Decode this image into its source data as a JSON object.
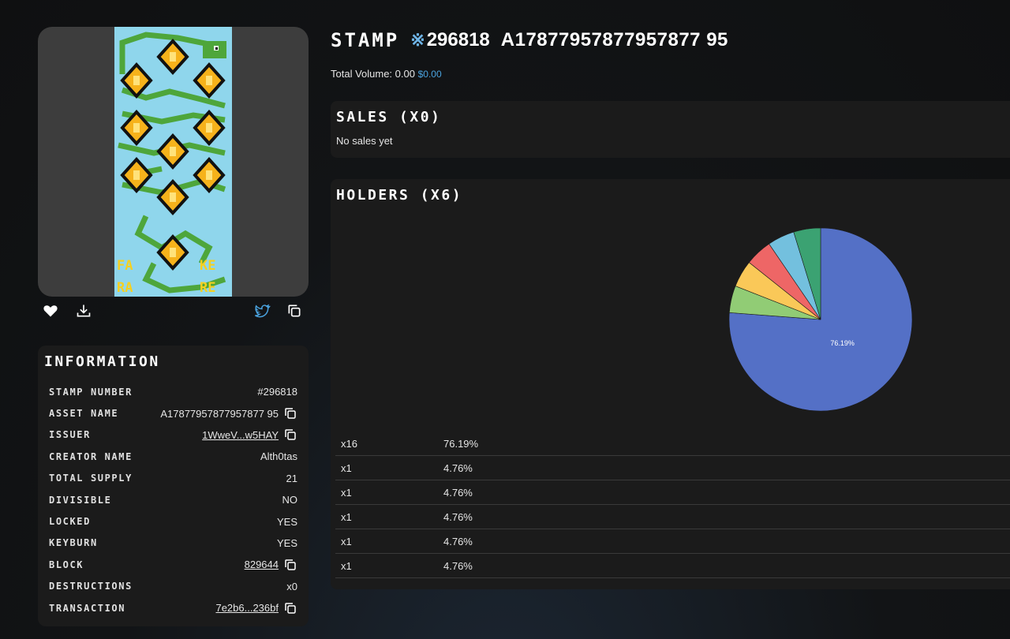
{
  "title": {
    "prefix": "STAMP",
    "symbol": "※",
    "number": "296818",
    "asset": "A17877957877957877 95"
  },
  "volume": {
    "label": "Total Volume: 0.00",
    "usd": "$0.00"
  },
  "sales": {
    "title": "SALES (X0)",
    "empty": "No sales yet"
  },
  "holders": {
    "title": "HOLDERS (X6)",
    "rows": [
      {
        "qty": "x16",
        "pct": "76.19%"
      },
      {
        "qty": "x1",
        "pct": "4.76%"
      },
      {
        "qty": "x1",
        "pct": "4.76%"
      },
      {
        "qty": "x1",
        "pct": "4.76%"
      },
      {
        "qty": "x1",
        "pct": "4.76%"
      },
      {
        "qty": "x1",
        "pct": "4.76%"
      }
    ]
  },
  "chart_data": {
    "type": "pie",
    "values": [
      76.19,
      4.76,
      4.76,
      4.76,
      4.76,
      4.76
    ],
    "labels": [
      "76.19%",
      "",
      "",
      "",
      "",
      ""
    ],
    "colors": [
      "#5470c6",
      "#91cc75",
      "#fac858",
      "#ee6666",
      "#73c0de",
      "#3ba272"
    ]
  },
  "information": {
    "title": "INFORMATION",
    "rows": [
      {
        "label": "STAMP NUMBER",
        "value": "#296818"
      },
      {
        "label": "ASSET NAME",
        "value": "A17877957877957877 95"
      },
      {
        "label": "ISSUER",
        "value": "1WweV...w5HAY"
      },
      {
        "label": "CREATOR NAME",
        "value": "Alth0tas"
      },
      {
        "label": "TOTAL SUPPLY",
        "value": "21"
      },
      {
        "label": "DIVISIBLE",
        "value": "NO"
      },
      {
        "label": "LOCKED",
        "value": "YES"
      },
      {
        "label": "KEYBURN",
        "value": "YES"
      },
      {
        "label": "BLOCK",
        "value": "829644"
      },
      {
        "label": "DESTRUCTIONS",
        "value": "x0"
      },
      {
        "label": "TRANSACTION",
        "value": "7e2b6...236bf"
      }
    ]
  },
  "art_text": {
    "left_top": "FA",
    "left_bottom": "RA",
    "right_top": "KE",
    "right_bottom": "RE"
  },
  "icons": {
    "like": "heart-icon",
    "download": "download-icon",
    "share": "twitter-icon",
    "copy": "copy-icon"
  }
}
